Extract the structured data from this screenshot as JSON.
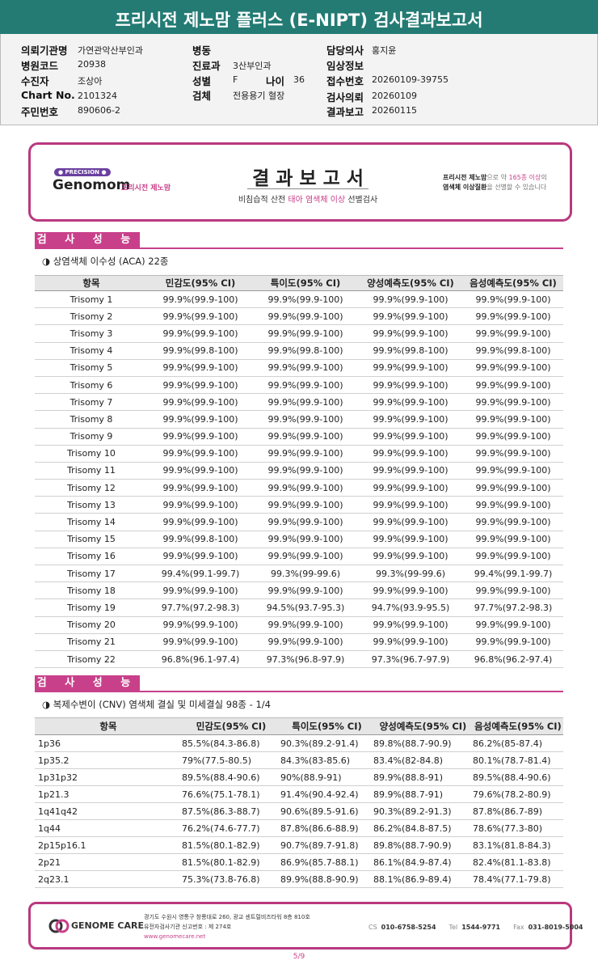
{
  "header": {
    "title": "프리시전 제노맘 플러스 (E-NIPT) 검사결과보고서"
  },
  "info": [
    {
      "label": "의뢰기관명",
      "value": "가연관악산부인과"
    },
    {
      "label": "병동"
    },
    {
      "label": "담당의사",
      "value": "홍지윤"
    },
    {
      "label": "병원코드",
      "value": "20938"
    },
    {
      "label": "진료과",
      "value": "3산부인과"
    },
    {
      "label": "임상정보"
    },
    {
      "label": "수진자",
      "value": "조상아"
    },
    {
      "label": "성별",
      "value": "F"
    },
    {
      "label": "나이",
      "value": "36"
    },
    {
      "label": "접수번호",
      "value": "20260109-39755"
    },
    {
      "label": "Chart No.",
      "value": "2101324"
    },
    {
      "label": "검체",
      "value": "전용용기 혈장"
    },
    {
      "label": "검사의뢰",
      "value": "20260109"
    },
    {
      "label": "주민번호",
      "value": "890606-2"
    },
    {
      "label": "결과보고",
      "value": "20260115"
    }
  ],
  "banner": {
    "logo_tag": "● PRECISION ●",
    "logo": "Genomom",
    "logo_sub": "프리시전 제노맘",
    "title": "결 과 보 고 서",
    "subtitle": [
      {
        "text": "비침습적 산전 ",
        "color": "#333333"
      },
      {
        "text": "태아 염색체 이상",
        "color": "#c8408a"
      },
      {
        "text": " 선별검사",
        "color": "#333333"
      }
    ],
    "note": [
      [
        {
          "text": "프리시전 제노맘",
          "color": "#222222"
        },
        {
          "text": "으로 약 ",
          "color": "#777777"
        },
        {
          "text": "165종 이상",
          "color": "#c8408a"
        },
        {
          "text": "의",
          "color": "#777777"
        }
      ],
      [
        {
          "text": "염색체 이상질환",
          "color": "#222222"
        },
        {
          "text": "을 선별할 수 있습니다",
          "color": "#777777"
        }
      ]
    ]
  },
  "sections": [
    {
      "label": "검 사 성 능",
      "subtitle": "◑ 상염색체 이수성 (ACA) 22종",
      "headers": [
        "항목",
        "민감도(95% CI)",
        "특이도(95% CI)",
        "양성예측도(95% CI)",
        "음성예측도(95% CI)"
      ],
      "rows": [
        [
          "Trisomy 1",
          "99.9%(99.9-100)",
          "99.9%(99.9-100)",
          "99.9%(99.9-100)",
          "99.9%(99.9-100)"
        ],
        [
          "Trisomy 2",
          "99.9%(99.9-100)",
          "99.9%(99.9-100)",
          "99.9%(99.9-100)",
          "99.9%(99.9-100)"
        ],
        [
          "Trisomy 3",
          "99.9%(99.9-100)",
          "99.9%(99.9-100)",
          "99.9%(99.9-100)",
          "99.9%(99.9-100)"
        ],
        [
          "Trisomy 4",
          "99.9%(99.8-100)",
          "99.9%(99.8-100)",
          "99.9%(99.8-100)",
          "99.9%(99.8-100)"
        ],
        [
          "Trisomy 5",
          "99.9%(99.9-100)",
          "99.9%(99.9-100)",
          "99.9%(99.9-100)",
          "99.9%(99.9-100)"
        ],
        [
          "Trisomy 6",
          "99.9%(99.9-100)",
          "99.9%(99.9-100)",
          "99.9%(99.9-100)",
          "99.9%(99.9-100)"
        ],
        [
          "Trisomy 7",
          "99.9%(99.9-100)",
          "99.9%(99.9-100)",
          "99.9%(99.9-100)",
          "99.9%(99.9-100)"
        ],
        [
          "Trisomy 8",
          "99.9%(99.9-100)",
          "99.9%(99.9-100)",
          "99.9%(99.9-100)",
          "99.9%(99.9-100)"
        ],
        [
          "Trisomy 9",
          "99.9%(99.9-100)",
          "99.9%(99.9-100)",
          "99.9%(99.9-100)",
          "99.9%(99.9-100)"
        ],
        [
          "Trisomy 10",
          "99.9%(99.9-100)",
          "99.9%(99.9-100)",
          "99.9%(99.9-100)",
          "99.9%(99.9-100)"
        ],
        [
          "Trisomy 11",
          "99.9%(99.9-100)",
          "99.9%(99.9-100)",
          "99.9%(99.9-100)",
          "99.9%(99.9-100)"
        ],
        [
          "Trisomy 12",
          "99.9%(99.9-100)",
          "99.9%(99.9-100)",
          "99.9%(99.9-100)",
          "99.9%(99.9-100)"
        ],
        [
          "Trisomy 13",
          "99.9%(99.9-100)",
          "99.9%(99.9-100)",
          "99.9%(99.9-100)",
          "99.9%(99.9-100)"
        ],
        [
          "Trisomy 14",
          "99.9%(99.9-100)",
          "99.9%(99.9-100)",
          "99.9%(99.9-100)",
          "99.9%(99.9-100)"
        ],
        [
          "Trisomy 15",
          "99.9%(99.8-100)",
          "99.9%(99.9-100)",
          "99.9%(99.9-100)",
          "99.9%(99.9-100)"
        ],
        [
          "Trisomy 16",
          "99.9%(99.9-100)",
          "99.9%(99.9-100)",
          "99.9%(99.9-100)",
          "99.9%(99.9-100)"
        ],
        [
          "Trisomy 17",
          "99.4%(99.1-99.7)",
          "99.3%(99-99.6)",
          "99.3%(99-99.6)",
          "99.4%(99.1-99.7)"
        ],
        [
          "Trisomy 18",
          "99.9%(99.9-100)",
          "99.9%(99.9-100)",
          "99.9%(99.9-100)",
          "99.9%(99.9-100)"
        ],
        [
          "Trisomy 19",
          "97.7%(97.2-98.3)",
          "94.5%(93.7-95.3)",
          "94.7%(93.9-95.5)",
          "97.7%(97.2-98.3)"
        ],
        [
          "Trisomy 20",
          "99.9%(99.9-100)",
          "99.9%(99.9-100)",
          "99.9%(99.9-100)",
          "99.9%(99.9-100)"
        ],
        [
          "Trisomy 21",
          "99.9%(99.9-100)",
          "99.9%(99.9-100)",
          "99.9%(99.9-100)",
          "99.9%(99.9-100)"
        ],
        [
          "Trisomy 22",
          "96.8%(96.1-97.4)",
          "97.3%(96.8-97.9)",
          "97.3%(96.7-97.9)",
          "96.8%(96.2-97.4)"
        ]
      ]
    },
    {
      "label": "검 사 성 능",
      "subtitle": "◑ 복제수변이 (CNV) 염색체 결실 및 미세결실 98종 - 1/4",
      "headers": [
        "항목",
        "민감도(95% CI)",
        "특이도(95% CI)",
        "양성예측도(95% CI)",
        "음성예측도(95% CI)"
      ],
      "rows": [
        [
          "1p36",
          "85.5%(84.3-86.8)",
          "90.3%(89.2-91.4)",
          "89.8%(88.7-90.9)",
          "86.2%(85-87.4)"
        ],
        [
          "1p35.2",
          "79%(77.5-80.5)",
          "84.3%(83-85.6)",
          "83.4%(82-84.8)",
          "80.1%(78.7-81.4)"
        ],
        [
          "1p31p32",
          "89.5%(88.4-90.6)",
          "90%(88.9-91)",
          "89.9%(88.8-91)",
          "89.5%(88.4-90.6)"
        ],
        [
          "1p21.3",
          "76.6%(75.1-78.1)",
          "91.4%(90.4-92.4)",
          "89.9%(88.7-91)",
          "79.6%(78.2-80.9)"
        ],
        [
          "1q41q42",
          "87.5%(86.3-88.7)",
          "90.6%(89.5-91.6)",
          "90.3%(89.2-91.3)",
          "87.8%(86.7-89)"
        ],
        [
          "1q44",
          "76.2%(74.6-77.7)",
          "87.8%(86.6-88.9)",
          "86.2%(84.8-87.5)",
          "78.6%(77.3-80)"
        ],
        [
          "2p15p16.1",
          "81.5%(80.1-82.9)",
          "90.7%(89.7-91.8)",
          "89.8%(88.7-90.9)",
          "83.1%(81.8-84.3)"
        ],
        [
          "2p21",
          "81.5%(80.1-82.9)",
          "86.9%(85.7-88.1)",
          "86.1%(84.9-87.4)",
          "82.4%(81.1-83.8)"
        ],
        [
          "2q23.1",
          "75.3%(73.8-76.8)",
          "89.9%(88.8-90.9)",
          "88.1%(86.9-89.4)",
          "78.4%(77.1-79.8)"
        ]
      ]
    }
  ],
  "footer": {
    "logo": "GENOME CARE",
    "address": [
      "경기도 수원시 영통구 창룡대로 260, 광교 센트럴비즈타워 8층 810호",
      "유전자검사기관 신고번호 : 제 274호",
      "www.genomecare.net"
    ],
    "contacts": [
      {
        "label": "CS",
        "value": "010-6758-5254"
      },
      {
        "label": "Tel",
        "value": "1544-9771"
      },
      {
        "label": "Fax",
        "value": "031-8019-5004"
      }
    ],
    "page": "5/9"
  }
}
